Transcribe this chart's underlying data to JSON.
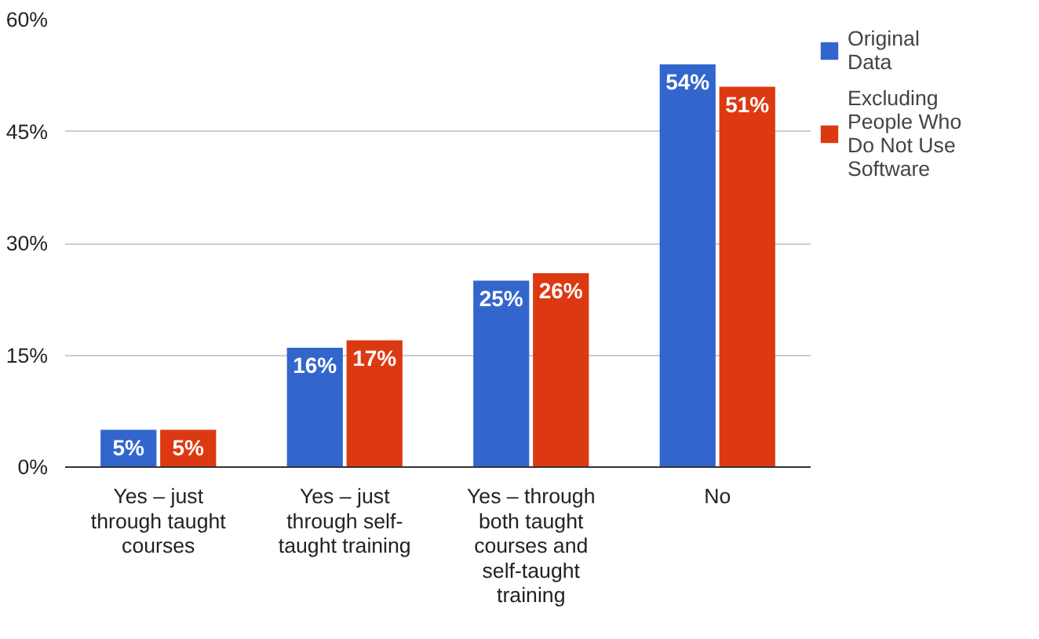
{
  "chart_data": {
    "type": "bar",
    "categories": [
      "Yes – just through taught courses",
      "Yes – just through self-taught training",
      "Yes – through both taught courses and self-taught training",
      "No"
    ],
    "series": [
      {
        "name": "Original Data",
        "color": "#3366cc",
        "values": [
          5,
          16,
          25,
          54
        ],
        "value_labels": [
          "5%",
          "16%",
          "25%",
          "54%"
        ]
      },
      {
        "name": "Excluding People Who Do Not Use Software",
        "color": "#dc3912",
        "values": [
          5,
          17,
          26,
          51
        ],
        "value_labels": [
          "5%",
          "17%",
          "26%",
          "51%"
        ]
      }
    ],
    "ylim": [
      0,
      60
    ],
    "yticks": [
      {
        "value": 0,
        "label": "0%"
      },
      {
        "value": 15,
        "label": "15%"
      },
      {
        "value": 30,
        "label": "30%"
      },
      {
        "value": 45,
        "label": "45%"
      },
      {
        "value": 60,
        "label": "60%"
      }
    ],
    "grid": "y",
    "legend": "right"
  }
}
